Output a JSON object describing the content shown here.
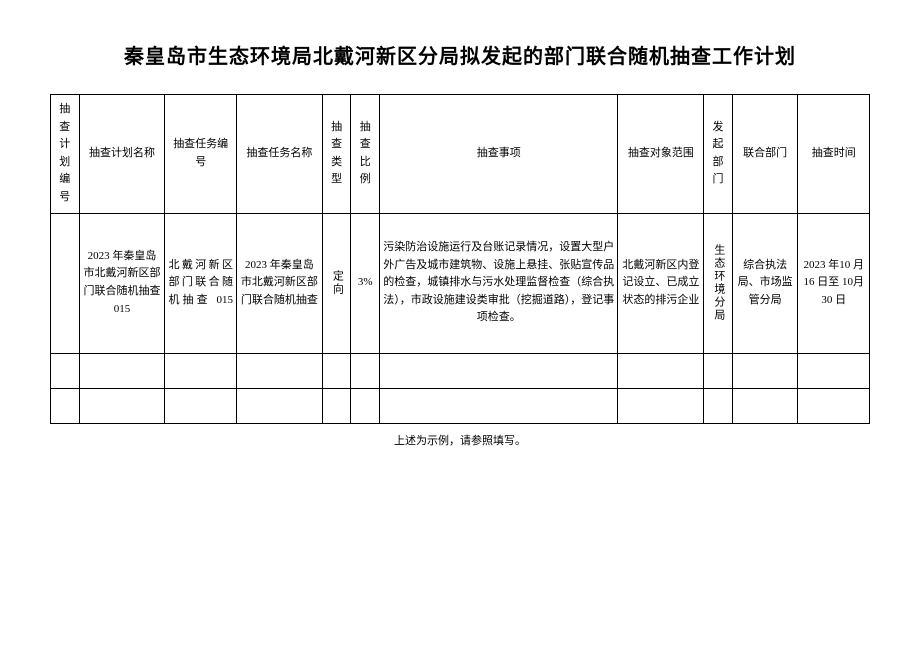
{
  "title": "秦皇岛市生态环境局北戴河新区分局拟发起的部门联合随机抽查工作计划",
  "columns": [
    "抽查计划编号",
    "抽查计划名称",
    "抽查任务编号",
    "抽查任务名称",
    "抽查类型",
    "抽查比例",
    "抽查事项",
    "抽查对象范围",
    "发起部门",
    "联合部门",
    "抽查时间"
  ],
  "rows": [
    {
      "plan_no": "",
      "plan_name": "2023 年秦皇岛市北戴河新区部门联合随机抽查015",
      "task_no": "北戴河新区部门联合随机抽查 015",
      "task_name": "2023 年秦皇岛市北戴河新区部门联合随机抽查",
      "check_type": "定向",
      "ratio": "3%",
      "items": "污染防治设施运行及台账记录情况，设置大型户外广告及城市建筑物、设施上悬挂、张贴宣传品的检查，城镇排水与污水处理监督检查（综合执法），市政设施建设类审批（挖掘道路），登记事项检查。",
      "scope": "北戴河新区内登记设立、已成立状态的排污企业",
      "initiator": "生态环境分局",
      "joint": "综合执法局、市场监管分局",
      "time": "2023 年10 月 16 日至 10月 30 日"
    }
  ],
  "footnote": "上述为示例，请参照填写。"
}
